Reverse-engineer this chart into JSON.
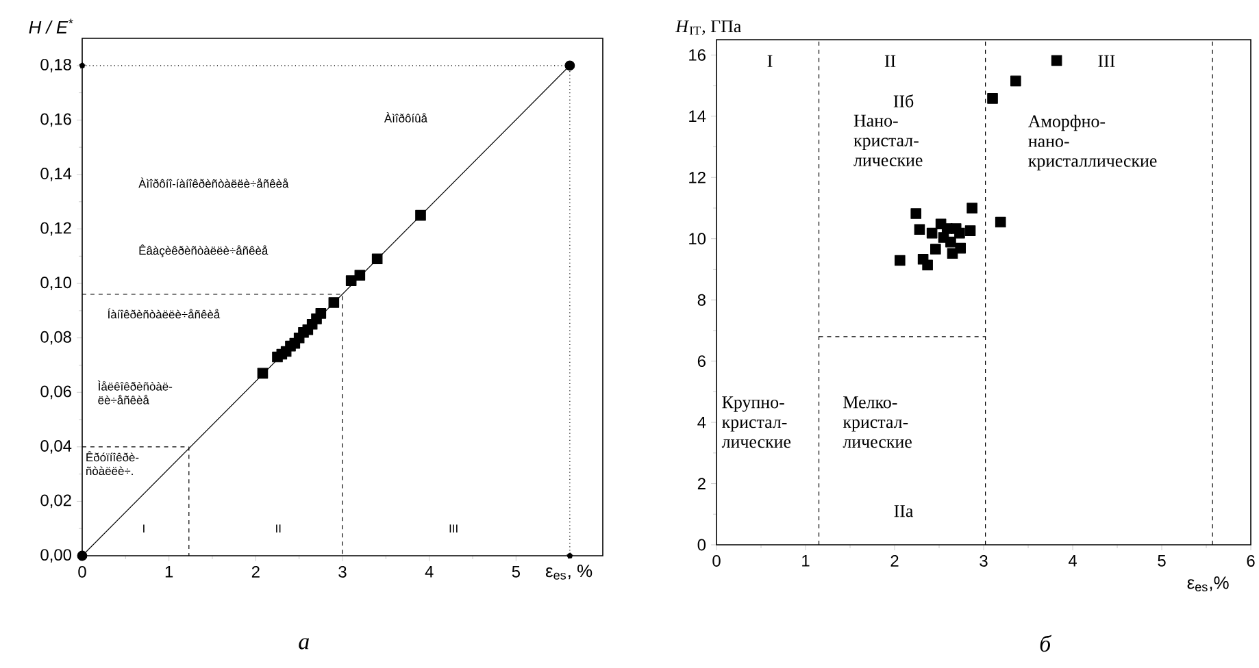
{
  "chart_data": [
    {
      "type": "line",
      "xlabel": "ε$_{es}$, %",
      "ylabel": "H / E$^{*}$",
      "xlim": [
        0,
        6
      ],
      "ylim": [
        0,
        0.19
      ],
      "xticks": [
        0,
        1,
        2,
        3,
        4,
        5
      ],
      "yticks": [
        {
          "value": 0,
          "label": "0,00"
        },
        {
          "value": 0.02,
          "label": "0,02"
        },
        {
          "value": 0.04,
          "label": "0,04"
        },
        {
          "value": 0.06,
          "label": "0,06"
        },
        {
          "value": 0.08,
          "label": "0,08"
        },
        {
          "value": 0.1,
          "label": "0,10"
        },
        {
          "value": 0.12,
          "label": "0,12"
        },
        {
          "value": 0.14,
          "label": "0,14"
        },
        {
          "value": 0.16,
          "label": "0,16"
        },
        {
          "value": 0.18,
          "label": "0,18"
        }
      ],
      "series": [
        {
          "color": "#000000",
          "marker": "circle",
          "x": [
            0,
            5.62
          ],
          "values": [
            0,
            0.18
          ]
        },
        {
          "type": "scatter",
          "color": "#000000",
          "marker": "square",
          "x": [
            2.08,
            2.25,
            2.3,
            2.35,
            2.4,
            2.45,
            2.5,
            2.55,
            2.6,
            2.65,
            2.7,
            2.75,
            2.9,
            3.1,
            3.2,
            3.4,
            3.9
          ],
          "values": [
            0.067,
            0.073,
            0.074,
            0.075,
            0.077,
            0.078,
            0.08,
            0.082,
            0.083,
            0.085,
            0.087,
            0.089,
            0.093,
            0.101,
            0.103,
            0.109,
            0.125
          ]
        },
        {
          "color": "#000000",
          "marker": "circle",
          "line_style": "dotted",
          "x": [
            0,
            5.62,
            5.62
          ],
          "values": [
            0.18,
            0.18,
            0
          ]
        },
        {
          "color": "#000000",
          "line_style": "dashed",
          "x": [
            0,
            3.0,
            3.0
          ],
          "values": [
            0.096,
            0.096,
            0
          ]
        },
        {
          "color": "#000000",
          "line_style": "dashed",
          "x": [
            0,
            1.23,
            1.23
          ],
          "values": [
            0.04,
            0.04,
            0
          ]
        }
      ],
      "annotations": [
        "Àìîðôíûå",
        "Àìîðôíî-íàíîêðèñòàëëè÷åñêèå",
        "Êâàçèêðèñòàëëè÷åñêèå",
        "Íàíîêðèñòàëëè÷åñêèå",
        "Ìåëêîêðèñòàë-ëè÷åñêèå",
        "Êðóïíîêðè-ñòàëëè÷.",
        "I",
        "II",
        "III",
        "а"
      ]
    },
    {
      "type": "scatter",
      "xlabel": "ε$_{es}$,%",
      "ylabel": "*H*$_{IT}$, ГПа",
      "xlim": [
        0,
        6
      ],
      "ylim": [
        0,
        16.5
      ],
      "xticks": [
        0,
        1,
        2,
        3,
        4,
        5,
        6
      ],
      "yticks": [
        0,
        2,
        4,
        6,
        8,
        10,
        12,
        14,
        16
      ],
      "series": [
        {
          "color": "#000000",
          "marker": "square",
          "x": [
            3.82,
            3.36,
            3.1,
            3.19,
            2.87,
            2.24,
            2.06,
            2.28,
            2.32,
            2.37,
            2.42,
            2.46,
            2.52,
            2.55,
            2.59,
            2.63,
            2.65,
            2.69,
            2.73,
            2.74,
            2.85
          ],
          "values": [
            15.82,
            15.15,
            14.58,
            10.54,
            11.0,
            10.82,
            9.29,
            10.3,
            9.33,
            9.14,
            10.18,
            9.66,
            10.48,
            10.04,
            10.33,
            9.89,
            9.52,
            10.33,
            10.18,
            9.69,
            10.26
          ]
        },
        {
          "type": "line",
          "color": "#000000",
          "line_style": "dashed",
          "x": [
            1.15,
            3.02
          ],
          "values": [
            6.8,
            6.8
          ]
        }
      ],
      "ref_lines": [
        {
          "axis": "x",
          "value": 1.15,
          "line_style": "dashed"
        },
        {
          "axis": "x",
          "value": 3.02,
          "line_style": "dashed"
        },
        {
          "axis": "x",
          "value": 5.57,
          "line_style": "dashed"
        }
      ],
      "annotations": [
        "I",
        "II",
        "III",
        "IIб",
        "Нано-кристал-лические",
        "Аморфно-нано-кристаллические",
        "Крупно-кристал-лические",
        "Мелко-кристал-лические",
        "IIа",
        "б"
      ]
    }
  ]
}
